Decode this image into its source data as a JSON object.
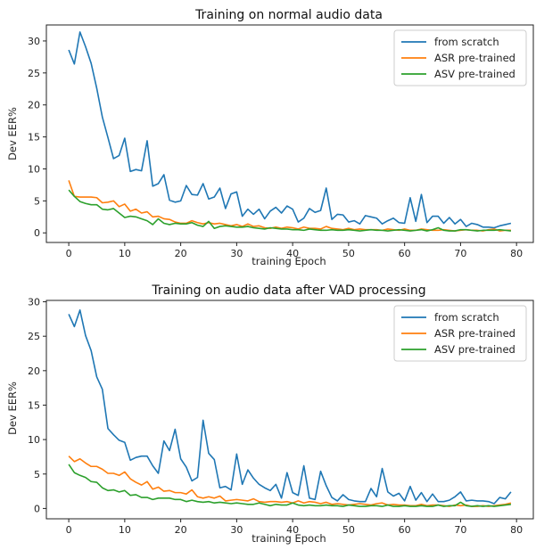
{
  "colors": {
    "from_scratch": "#1f77b4",
    "asr": "#ff7f0e",
    "asv": "#2ca02c"
  },
  "chart_data": [
    {
      "type": "line",
      "title": "Training on normal audio data",
      "xlabel": "training Epoch",
      "ylabel": "Dev EER%",
      "xlim": [
        -4,
        83
      ],
      "ylim": [
        -1.5,
        32.5
      ],
      "xticks": [
        0,
        10,
        20,
        30,
        40,
        50,
        60,
        70,
        80
      ],
      "yticks": [
        0,
        5,
        10,
        15,
        20,
        25,
        30
      ],
      "legend_position": "top-right",
      "series": [
        {
          "name": "from scratch",
          "color": "#1f77b4",
          "values": [
            28.6,
            26.4,
            31.4,
            29.1,
            26.5,
            22.6,
            18.1,
            14.9,
            11.6,
            12.1,
            14.8,
            9.6,
            9.9,
            9.7,
            14.4,
            7.3,
            7.7,
            9.1,
            5.1,
            4.8,
            5.0,
            7.4,
            6.0,
            5.9,
            7.7,
            5.3,
            5.6,
            7.0,
            3.8,
            6.1,
            6.4,
            2.6,
            3.7,
            2.9,
            3.7,
            2.2,
            3.4,
            4.0,
            3.1,
            4.2,
            3.7,
            1.7,
            2.3,
            3.8,
            3.2,
            3.5,
            7.0,
            2.1,
            2.9,
            2.8,
            1.7,
            1.9,
            1.4,
            2.7,
            2.5,
            2.3,
            1.4,
            1.9,
            2.3,
            1.6,
            1.5,
            5.5,
            1.8,
            6.0,
            1.6,
            2.6,
            2.6,
            1.5,
            2.4,
            1.4,
            2.1,
            1.0,
            1.5,
            1.3,
            0.9,
            0.9,
            0.8,
            1.1,
            1.3,
            1.5
          ]
        },
        {
          "name": "ASR pre-trained",
          "color": "#ff7f0e",
          "values": [
            8.2,
            5.7,
            5.6,
            5.6,
            5.6,
            5.5,
            4.7,
            4.8,
            5.0,
            4.1,
            4.5,
            3.4,
            3.7,
            3.1,
            3.3,
            2.5,
            2.6,
            2.2,
            2.1,
            1.7,
            1.5,
            1.5,
            1.9,
            1.6,
            1.4,
            1.6,
            1.4,
            1.5,
            1.3,
            1.1,
            1.3,
            1.0,
            1.4,
            1.0,
            1.1,
            0.8,
            0.7,
            0.9,
            0.7,
            0.9,
            0.8,
            0.6,
            0.9,
            0.7,
            0.7,
            0.6,
            1.0,
            0.7,
            0.6,
            0.5,
            0.7,
            0.5,
            0.6,
            0.5,
            0.5,
            0.5,
            0.4,
            0.6,
            0.5,
            0.4,
            0.6,
            0.4,
            0.4,
            0.6,
            0.5,
            0.4,
            0.4,
            0.5,
            0.4,
            0.3,
            0.4,
            0.5,
            0.4,
            0.4,
            0.3,
            0.5,
            0.6,
            0.3,
            0.4,
            0.4
          ]
        },
        {
          "name": "ASV pre-trained",
          "color": "#2ca02c",
          "values": [
            6.7,
            5.7,
            4.9,
            4.6,
            4.4,
            4.4,
            3.7,
            3.6,
            3.8,
            3.1,
            2.4,
            2.6,
            2.5,
            2.2,
            1.9,
            1.3,
            2.2,
            1.5,
            1.3,
            1.5,
            1.4,
            1.4,
            1.6,
            1.2,
            1.0,
            1.8,
            0.7,
            1.0,
            1.1,
            1.0,
            0.9,
            0.9,
            1.0,
            0.8,
            0.7,
            0.6,
            0.8,
            0.7,
            0.6,
            0.6,
            0.5,
            0.5,
            0.4,
            0.6,
            0.5,
            0.4,
            0.4,
            0.5,
            0.4,
            0.4,
            0.5,
            0.4,
            0.3,
            0.4,
            0.5,
            0.4,
            0.4,
            0.3,
            0.4,
            0.5,
            0.4,
            0.3,
            0.4,
            0.5,
            0.3,
            0.5,
            0.8,
            0.4,
            0.3,
            0.3,
            0.5,
            0.5,
            0.4,
            0.3,
            0.4,
            0.4,
            0.4,
            0.5,
            0.4,
            0.3
          ]
        }
      ]
    },
    {
      "type": "line",
      "title": "Training on audio data after VAD processing",
      "xlabel": "training Epoch",
      "ylabel": "Dev EER%",
      "xlim": [
        -4,
        83
      ],
      "ylim": [
        -1.5,
        30.2
      ],
      "xticks": [
        0,
        10,
        20,
        30,
        40,
        50,
        60,
        70,
        80
      ],
      "yticks": [
        0,
        5,
        10,
        15,
        20,
        25,
        30
      ],
      "legend_position": "top-right",
      "series": [
        {
          "name": "from scratch",
          "color": "#1f77b4",
          "values": [
            28.2,
            26.4,
            28.8,
            25.1,
            22.9,
            19.1,
            17.3,
            11.6,
            10.7,
            9.9,
            9.6,
            7.0,
            7.4,
            7.6,
            7.6,
            6.2,
            5.1,
            9.8,
            8.4,
            11.5,
            7.2,
            6.0,
            4.0,
            4.5,
            12.8,
            8.0,
            7.1,
            3.0,
            3.2,
            2.7,
            7.9,
            3.5,
            5.6,
            4.4,
            3.5,
            3.0,
            2.6,
            3.5,
            1.5,
            5.2,
            2.3,
            1.9,
            6.2,
            1.5,
            1.3,
            5.4,
            3.3,
            1.6,
            1.1,
            2.0,
            1.3,
            1.1,
            1.0,
            1.0,
            2.9,
            1.7,
            5.8,
            2.4,
            1.8,
            2.2,
            1.1,
            3.2,
            1.2,
            2.3,
            1.0,
            2.1,
            1.0,
            1.0,
            1.2,
            1.7,
            2.4,
            1.1,
            1.2,
            1.1,
            1.1,
            1.0,
            0.7,
            1.6,
            1.4,
            2.4
          ]
        },
        {
          "name": "ASR pre-trained",
          "color": "#ff7f0e",
          "values": [
            7.6,
            6.8,
            7.2,
            6.6,
            6.1,
            6.1,
            5.7,
            5.1,
            5.1,
            4.8,
            5.3,
            4.3,
            3.8,
            3.4,
            3.9,
            2.8,
            3.1,
            2.5,
            2.6,
            2.3,
            2.3,
            2.1,
            2.7,
            1.7,
            1.5,
            1.7,
            1.5,
            1.8,
            1.1,
            1.2,
            1.3,
            1.2,
            1.1,
            1.4,
            1.0,
            0.9,
            1.0,
            1.0,
            0.9,
            1.0,
            0.8,
            1.1,
            0.8,
            1.0,
            0.9,
            0.7,
            0.9,
            0.6,
            0.7,
            0.6,
            0.5,
            0.6,
            0.7,
            0.6,
            0.5,
            0.7,
            0.8,
            0.5,
            0.6,
            0.5,
            0.5,
            0.4,
            0.4,
            0.6,
            0.4,
            0.5,
            0.5,
            0.4,
            0.3,
            0.5,
            0.4,
            0.5,
            0.3,
            0.3,
            0.4,
            0.3,
            0.4,
            0.5,
            0.6,
            0.8
          ]
        },
        {
          "name": "ASV pre-trained",
          "color": "#2ca02c",
          "values": [
            6.4,
            5.2,
            4.8,
            4.5,
            3.9,
            3.8,
            3.0,
            2.6,
            2.7,
            2.4,
            2.6,
            1.9,
            2.0,
            1.6,
            1.6,
            1.3,
            1.5,
            1.5,
            1.5,
            1.3,
            1.3,
            1.0,
            1.2,
            1.0,
            0.9,
            1.0,
            0.8,
            0.9,
            0.8,
            0.7,
            0.8,
            0.7,
            0.6,
            0.6,
            0.8,
            0.6,
            0.4,
            0.6,
            0.5,
            0.5,
            0.8,
            0.5,
            0.4,
            0.5,
            0.4,
            0.4,
            0.5,
            0.4,
            0.4,
            0.3,
            0.5,
            0.4,
            0.3,
            0.3,
            0.4,
            0.4,
            0.3,
            0.5,
            0.3,
            0.3,
            0.4,
            0.3,
            0.3,
            0.4,
            0.3,
            0.3,
            0.5,
            0.3,
            0.4,
            0.4,
            0.9,
            0.4,
            0.3,
            0.4,
            0.3,
            0.4,
            0.3,
            0.4,
            0.5,
            0.6
          ]
        }
      ]
    }
  ]
}
